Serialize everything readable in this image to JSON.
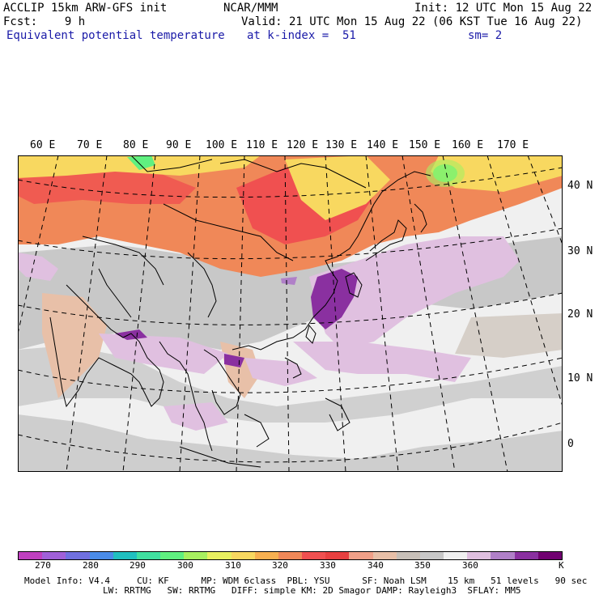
{
  "header": {
    "left_line1": "ACCLIP 15km ARW-GFS init",
    "left_line2": "Fcst:    9 h",
    "title": "Equivalent potential temperature",
    "center_line1": "NCAR/MMM",
    "init": "Init: 12 UTC Mon 15 Aug 22",
    "valid": "Valid: 21 UTC Mon 15 Aug 22 (06 KST Tue 16 Aug 22)",
    "level": "at k-index =  51",
    "smoothing": "sm= 2"
  },
  "map": {
    "lon_labels": [
      "60 E",
      "70 E",
      "80 E",
      "90 E",
      "100 E",
      "110 E",
      "120 E",
      "130 E",
      "140 E",
      "150 E",
      "160 E",
      "170 E"
    ],
    "lat_labels": [
      "40 N",
      "30 N",
      "20 N",
      "10 N",
      "0"
    ]
  },
  "colorbar": {
    "colors": [
      "#c040c0",
      "#a060d8",
      "#7070e0",
      "#4a8ce8",
      "#20c0c0",
      "#40e0a0",
      "#60f080",
      "#a8f060",
      "#e8f060",
      "#f8d860",
      "#f8b050",
      "#f08858",
      "#f05050",
      "#e84040",
      "#f0a088",
      "#e8c0a8",
      "#c8c0b8",
      "#c8c8c8",
      "#f0f0f0",
      "#e0c0e0",
      "#b080c8",
      "#8a30a0",
      "#700070"
    ],
    "ticks": [
      "270",
      "280",
      "290",
      "300",
      "310",
      "320",
      "330",
      "340",
      "350",
      "360",
      "K"
    ]
  },
  "footer": {
    "line1": "Model Info: V4.4     CU: KF      MP: WDM 6class  PBL: YSU      SF: Noah LSM    15 km   51 levels   90 sec",
    "line2": "LW: RRTMG   SW: RRTMG   DIFF: simple KM: 2D Smagor DAMP: Rayleigh3  SFLAY: MM5"
  }
}
